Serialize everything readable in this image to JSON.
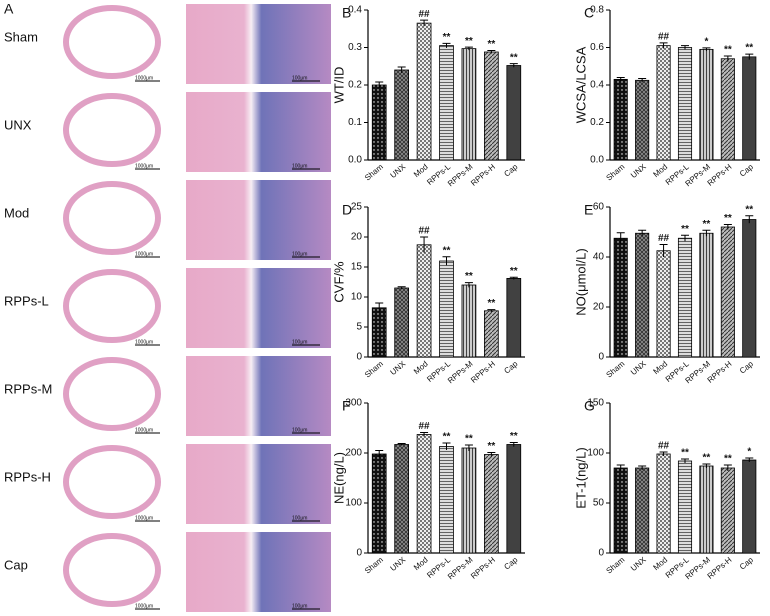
{
  "panel_a": {
    "label": "A",
    "groups": [
      "Sham",
      "UNX",
      "Mod",
      "RPPs-L",
      "RPPs-M",
      "RPPs-H",
      "Cap"
    ],
    "scale_bars": [
      "1000μm",
      "100μm"
    ]
  },
  "chart_data": [
    {
      "type": "bar",
      "label": "B",
      "ylabel": "WT/ID",
      "categories": [
        "Sham",
        "UNX",
        "Mod",
        "RPPs-L",
        "RPPs-M",
        "RPPs-H",
        "Cap"
      ],
      "values": [
        0.2,
        0.24,
        0.365,
        0.305,
        0.297,
        0.288,
        0.252
      ],
      "errors": [
        0.008,
        0.008,
        0.008,
        0.006,
        0.004,
        0.004,
        0.005
      ],
      "annotations": [
        null,
        null,
        "##",
        "**",
        "**",
        "**",
        "**"
      ],
      "ylim": [
        0,
        0.4
      ],
      "yticks": [
        {
          "value": 0,
          "label": "0.0"
        },
        0.1,
        0.2,
        0.3,
        0.4
      ]
    },
    {
      "type": "bar",
      "label": "C",
      "ylabel": "WCSA/LCSA",
      "categories": [
        "Sham",
        "UNX",
        "Mod",
        "RPPs-L",
        "RPPs-M",
        "RPPs-H",
        "Cap"
      ],
      "values": [
        0.43,
        0.425,
        0.61,
        0.6,
        0.59,
        0.54,
        0.55
      ],
      "errors": [
        0.01,
        0.01,
        0.015,
        0.01,
        0.008,
        0.015,
        0.015
      ],
      "annotations": [
        null,
        null,
        "##",
        null,
        "*",
        "**",
        "**"
      ],
      "ylim": [
        0,
        0.8
      ],
      "yticks": [
        {
          "value": 0,
          "label": "0.0"
        },
        0.2,
        0.4,
        0.6,
        0.8
      ]
    },
    {
      "type": "bar",
      "label": "D",
      "ylabel": "CVF/%",
      "categories": [
        "Sham",
        "UNX",
        "Mod",
        "RPPs-L",
        "RPPs-M",
        "RPPs-H",
        "Cap"
      ],
      "values": [
        8.2,
        11.5,
        18.7,
        16,
        12,
        7.7,
        13.1
      ],
      "errors": [
        0.8,
        0.2,
        1.3,
        0.7,
        0.4,
        0.2,
        0.2
      ],
      "annotations": [
        null,
        null,
        "##",
        "**",
        "**",
        "**",
        "**"
      ],
      "ylim": [
        0,
        25
      ],
      "yticks": [
        0,
        5,
        10,
        15,
        20,
        25
      ]
    },
    {
      "type": "bar",
      "label": "E",
      "ylabel": "NO(μmol/L)",
      "categories": [
        "Sham",
        "UNX",
        "Mod",
        "RPPs-L",
        "RPPs-M",
        "RPPs-H",
        "Cap"
      ],
      "values": [
        47.5,
        49.5,
        42.5,
        47.5,
        49.5,
        52,
        55
      ],
      "errors": [
        2.2,
        1.2,
        2.5,
        1.2,
        1.2,
        1,
        1.5
      ],
      "annotations": [
        null,
        null,
        "##",
        "**",
        "**",
        "**",
        "**"
      ],
      "ylim": [
        0,
        60
      ],
      "yticks": [
        0,
        20,
        40,
        60
      ]
    },
    {
      "type": "bar",
      "label": "F",
      "ylabel": "NE(ng/L)",
      "categories": [
        "Sham",
        "UNX",
        "Mod",
        "RPPs-L",
        "RPPs-M",
        "RPPs-H",
        "Cap"
      ],
      "values": [
        198,
        217,
        237,
        213,
        210,
        197,
        217
      ],
      "errors": [
        7,
        2,
        4,
        7,
        6,
        4,
        4
      ],
      "annotations": [
        null,
        null,
        "##",
        "**",
        "**",
        "**",
        "**"
      ],
      "ylim": [
        0,
        300
      ],
      "yticks": [
        0,
        100,
        200,
        300
      ]
    },
    {
      "type": "bar",
      "label": "G",
      "ylabel": "ET-1(ng/L)",
      "categories": [
        "Sham",
        "UNX",
        "Mod",
        "RPPs-L",
        "RPPs-M",
        "RPPs-H",
        "Cap"
      ],
      "values": [
        85,
        85,
        99,
        92,
        87,
        85,
        93
      ],
      "errors": [
        3,
        2,
        2,
        2,
        2,
        3,
        2
      ],
      "annotations": [
        null,
        null,
        "##",
        "**",
        "**",
        "**",
        "*"
      ],
      "ylim": [
        0,
        150
      ],
      "yticks": [
        0,
        50,
        100,
        150
      ]
    }
  ]
}
